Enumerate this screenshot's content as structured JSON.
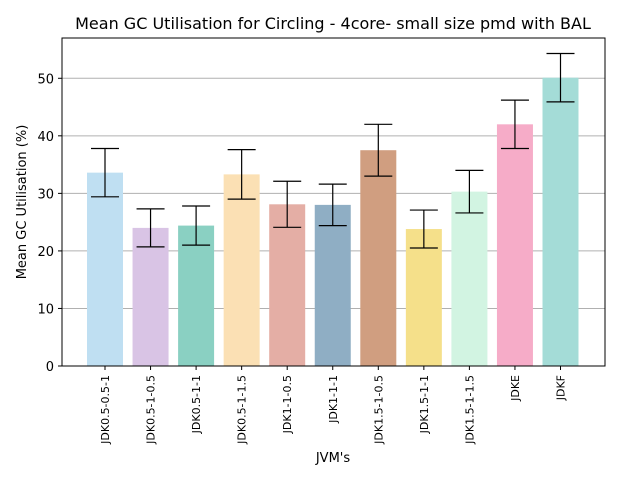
{
  "chart_data": {
    "type": "bar",
    "title": "Mean GC Utilisation for Circling - 4core- small size pmd with BAL",
    "xlabel": "JVM's",
    "ylabel": "Mean GC Utilisation (%)",
    "ylim": [
      0,
      57
    ],
    "yticks": [
      0,
      10,
      20,
      30,
      40,
      50
    ],
    "grid": "y",
    "categories": [
      "JDK0.5-0.5-1",
      "JDK0.5-1-0.5",
      "JDK0.5-1-1",
      "JDK0.5-1-1.5",
      "JDK1-1-0.5",
      "JDK1-1-1",
      "JDK1.5-1-0.5",
      "JDK1.5-1-1",
      "JDK1.5-1-1.5",
      "JDKE",
      "JDKF"
    ],
    "values": [
      33.6,
      24.0,
      24.4,
      33.3,
      28.1,
      28.0,
      37.5,
      23.8,
      30.3,
      42.0,
      50.1
    ],
    "errors": [
      4.2,
      3.3,
      3.4,
      4.3,
      4.0,
      3.6,
      4.5,
      3.3,
      3.7,
      4.2,
      4.2
    ],
    "colors": [
      "#bfdff2",
      "#d9c4e5",
      "#8ad0c2",
      "#fbe0b4",
      "#e4aea5",
      "#8faec4",
      "#d09e80",
      "#f5e08a",
      "#d2f4e2",
      "#f6acc8",
      "#a4dcd7"
    ]
  }
}
